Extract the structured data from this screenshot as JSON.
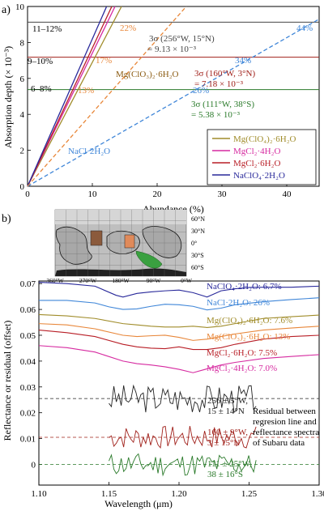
{
  "panel_labels": {
    "a": "a)",
    "b": "b)"
  },
  "chart_data": [
    {
      "type": "line",
      "title": "",
      "xlabel": "Abundance (%)",
      "ylabel": "Absorption depth (× 10⁻³)",
      "xlim": [
        0,
        45
      ],
      "ylim": [
        0,
        10
      ],
      "x_ticks": [
        0,
        10,
        20,
        30,
        40
      ],
      "y_ticks": [
        0,
        2,
        4,
        6,
        8,
        10
      ],
      "grid": false,
      "legend_position": "bottom-right",
      "series": [
        {
          "name": "Mg(ClO₄)₂·6H₂O",
          "color": "#a08c2a",
          "dash": "solid",
          "x": [
            0,
            14.5
          ],
          "y": [
            0,
            10
          ]
        },
        {
          "name": "MgCl₂·4H₂O",
          "color": "#d62aa0",
          "dash": "solid",
          "x": [
            0,
            13.5
          ],
          "y": [
            0,
            10
          ]
        },
        {
          "name": "MgCl₂·6H₂O",
          "color": "#b81e26",
          "dash": "solid",
          "x": [
            0,
            13.0
          ],
          "y": [
            0,
            10
          ]
        },
        {
          "name": "NaClO₄·2H₂O",
          "color": "#28289a",
          "dash": "solid",
          "x": [
            0,
            12.2
          ],
          "y": [
            0,
            10
          ]
        },
        {
          "name": "NaCl·2H₂O",
          "color": "#3f86d8",
          "dash": "dashed",
          "x": [
            0,
            45
          ],
          "y": [
            0,
            9.3
          ]
        },
        {
          "name": "Mg(ClO₃)₂·6H₂O",
          "color": "#e8873a",
          "dash": "dashed",
          "x": [
            0,
            24.5
          ],
          "y": [
            0,
            10
          ]
        }
      ],
      "thresholds": [
        {
          "value": 9.13,
          "color": "#444444"
        },
        {
          "value": 7.18,
          "color": "#a0201a"
        },
        {
          "value": 5.38,
          "color": "#2a7a2a"
        }
      ],
      "annotations": {
        "range_9_13": "11–12%",
        "range_7_18": "9–10%",
        "range_5_38": "6–8%",
        "pct_22": "22%",
        "pct_17": "17%",
        "pct_13": "13%",
        "pct_44": "44%",
        "pct_34": "34%",
        "pct_26": "26%",
        "sigma_1_line1": "3σ (256°W, 15°N)",
        "sigma_1_line2": "= 9.13 × 10⁻³",
        "sigma_2_line1": "3σ (160°W, 3°N)",
        "sigma_2_line2": "= 7.18 × 10⁻³",
        "sigma_3_line1": "3σ (111°W, 38°S)",
        "sigma_3_line2": "= 5.38 × 10⁻³",
        "mgclo3_label": "Mg(ClO₃)₂·6H₂O",
        "nacl_label": "NaCl·2H₂O"
      }
    },
    {
      "type": "line",
      "title": "",
      "xlabel": "Wavelength (μm)",
      "ylabel": "Reflectance or residual (offset)",
      "xlim": [
        1.1,
        1.3
      ],
      "ylim": [
        -0.008,
        0.071
      ],
      "x_ticks": [
        1.1,
        1.15,
        1.2,
        1.25,
        1.3
      ],
      "x_tick_labels": [
        "1.10",
        "1.15",
        "1.20",
        "1.25",
        "1.30"
      ],
      "y_ticks": [
        0,
        0.01,
        0.02,
        0.03,
        0.04,
        0.05,
        0.06,
        0.07
      ],
      "y_tick_labels": [
        "0",
        "0.01",
        "0.02",
        "0.03",
        "0.04",
        "0.05",
        "0.06",
        "0.07"
      ],
      "grid": false,
      "spectra": [
        {
          "name": "NaClO₄·2H₂O: 6.7%",
          "color": "#28289a",
          "x": [
            1.1,
            1.12,
            1.14,
            1.155,
            1.16,
            1.17,
            1.18,
            1.19,
            1.2,
            1.21,
            1.22,
            1.23,
            1.24,
            1.25,
            1.26,
            1.28,
            1.3
          ],
          "y": [
            0.0705,
            0.07,
            0.069,
            0.0655,
            0.0648,
            0.0662,
            0.0668,
            0.0672,
            0.0675,
            0.0665,
            0.0648,
            0.0672,
            0.068,
            0.0685,
            0.0686,
            0.0686,
            0.069
          ]
        },
        {
          "name": "NaCl·2H₂O: 26%",
          "color": "#3f86d8",
          "x": [
            1.1,
            1.12,
            1.14,
            1.15,
            1.16,
            1.17,
            1.18,
            1.19,
            1.2,
            1.21,
            1.22,
            1.23,
            1.24,
            1.26,
            1.28,
            1.3
          ],
          "y": [
            0.0635,
            0.0635,
            0.0625,
            0.061,
            0.06,
            0.0602,
            0.0612,
            0.062,
            0.0618,
            0.0612,
            0.0598,
            0.0605,
            0.0618,
            0.063,
            0.0638,
            0.0645
          ]
        },
        {
          "name": "Mg(ClO₄)₂·6H₂O: 7.6%",
          "color": "#a08c2a",
          "x": [
            1.1,
            1.12,
            1.14,
            1.16,
            1.17,
            1.18,
            1.19,
            1.2,
            1.21,
            1.22,
            1.23,
            1.24,
            1.26,
            1.28,
            1.3
          ],
          "y": [
            0.058,
            0.0575,
            0.0565,
            0.0545,
            0.054,
            0.0535,
            0.0532,
            0.0532,
            0.0535,
            0.053,
            0.0535,
            0.0545,
            0.0565,
            0.0572,
            0.0578
          ]
        },
        {
          "name": "Mg(ClO₃)₂·6H₂O: 13%",
          "color": "#e8873a",
          "x": [
            1.1,
            1.12,
            1.14,
            1.16,
            1.17,
            1.18,
            1.19,
            1.2,
            1.21,
            1.22,
            1.23,
            1.24,
            1.26,
            1.28,
            1.3
          ],
          "y": [
            0.0545,
            0.054,
            0.0525,
            0.05,
            0.0495,
            0.0498,
            0.05,
            0.0492,
            0.048,
            0.0485,
            0.0495,
            0.0505,
            0.052,
            0.0528,
            0.0535
          ]
        },
        {
          "name": "MgCl₂·6H₂O: 7.5%",
          "color": "#b81e26",
          "x": [
            1.1,
            1.12,
            1.14,
            1.16,
            1.17,
            1.18,
            1.19,
            1.2,
            1.21,
            1.22,
            1.23,
            1.24,
            1.26,
            1.28,
            1.3
          ],
          "y": [
            0.052,
            0.051,
            0.0495,
            0.0465,
            0.0455,
            0.045,
            0.0448,
            0.0455,
            0.0445,
            0.0445,
            0.0452,
            0.0465,
            0.0485,
            0.0495,
            0.05
          ]
        },
        {
          "name": "MgCl₂·4H₂O: 7.0%",
          "color": "#d62aa0",
          "x": [
            1.1,
            1.12,
            1.14,
            1.16,
            1.17,
            1.18,
            1.19,
            1.2,
            1.21,
            1.22,
            1.23,
            1.24,
            1.26,
            1.28,
            1.3
          ],
          "y": [
            0.046,
            0.0452,
            0.0435,
            0.04,
            0.039,
            0.0385,
            0.0378,
            0.0368,
            0.0355,
            0.037,
            0.0385,
            0.0395,
            0.041,
            0.0418,
            0.0425
          ]
        }
      ],
      "residuals": [
        {
          "name": "256 ± 5°W, 15 ± 14°N",
          "line1": "256 ± 5°W,",
          "line2": "15 ± 14°N",
          "color": "#222222",
          "offset": 0.0255,
          "amp": 0.0055,
          "seed": 3
        },
        {
          "name": "160 ± 9°W, 3 ± 15°N",
          "line1": "160 ± 9°W,",
          "line2": "3 ± 15°N",
          "color": "#a0201a",
          "offset": 0.0105,
          "amp": 0.0045,
          "seed": 7
        },
        {
          "name": "111 ± 25°W, 38 ± 16°S",
          "line1": "111 ± 25°W,",
          "line2": "38 ± 16°S",
          "color": "#2a7a2a",
          "offset": 0.0,
          "amp": 0.0045,
          "seed": 11
        }
      ],
      "residual_annotation": [
        "Residual between",
        "regresion line and",
        "reflectance spectra",
        "of Subaru data"
      ]
    }
  ],
  "map": {
    "lat_labels": [
      "60°N",
      "30°N",
      "0°",
      "30°S",
      "60°S"
    ],
    "lon_labels": [
      "360°W",
      "270°W",
      "180°W",
      "90°W",
      "0°W"
    ],
    "regions": [
      {
        "name": "region-256W-15N",
        "color": "#8b5a3c"
      },
      {
        "name": "region-160W-3N",
        "color": "#e08a5a"
      },
      {
        "name": "region-111W-38S",
        "color": "#3aa040"
      }
    ]
  }
}
